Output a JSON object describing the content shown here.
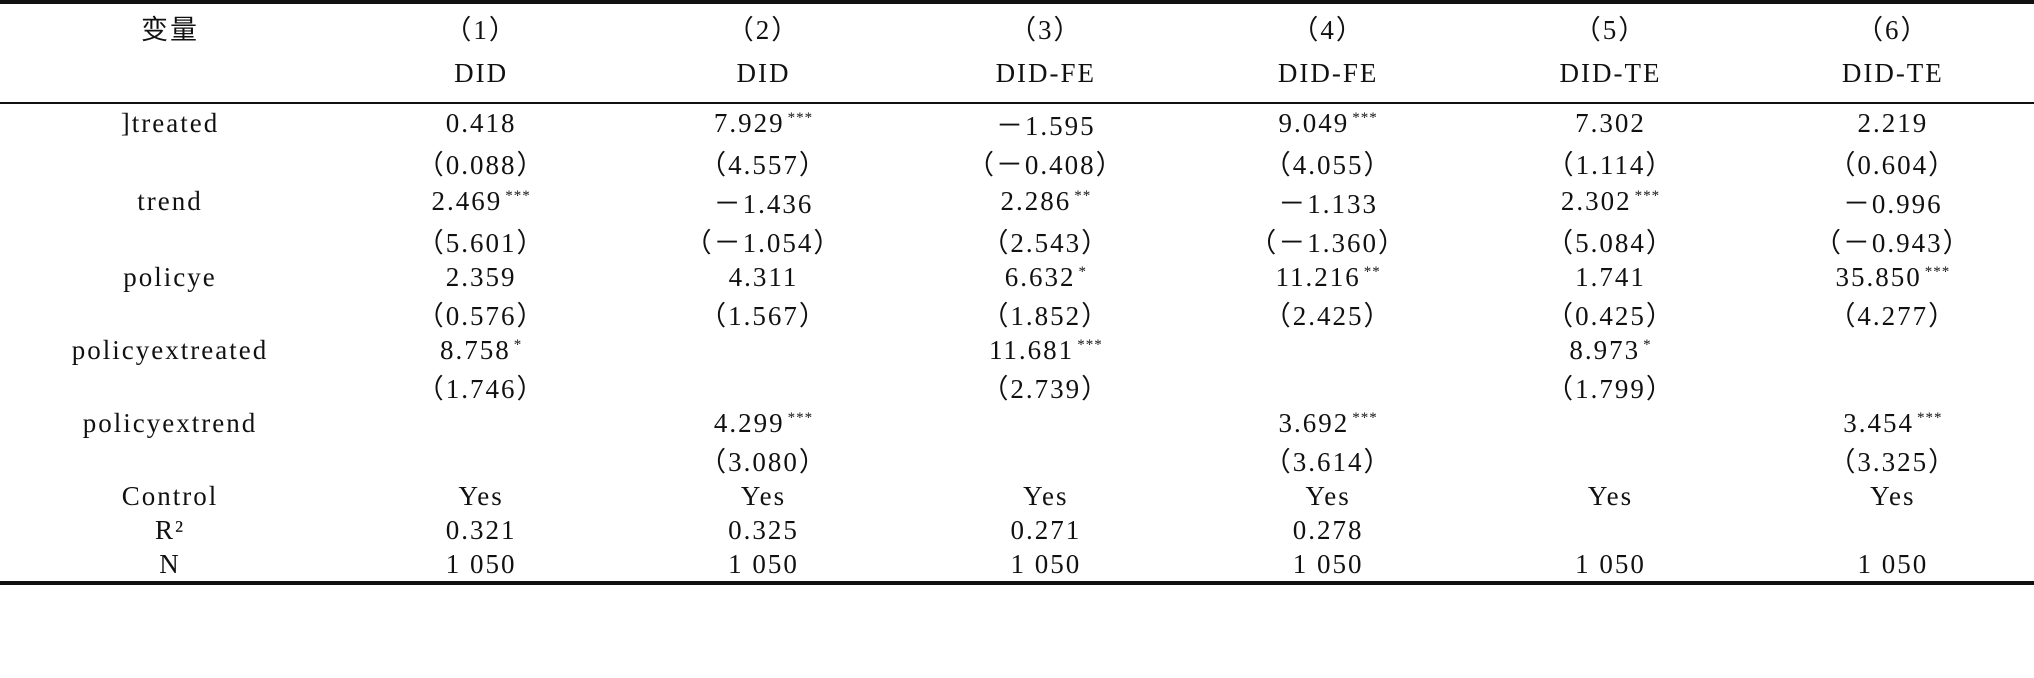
{
  "header": {
    "rows": [
      [
        "变量",
        "（1）",
        "（2）",
        "（3）",
        "（4）",
        "（5）",
        "（6）"
      ],
      [
        null,
        "DID",
        "DID",
        "DID-FE",
        "DID-FE",
        "DID-TE",
        "DID-TE"
      ]
    ]
  },
  "table": {
    "rows": [
      [
        "]treated",
        "0.418",
        {
          "text": "7.929",
          "stars": "***"
        },
        "－1.595",
        {
          "text": "9.049",
          "stars": "***"
        },
        "7.302",
        "2.219"
      ],
      [
        null,
        "（0.088）",
        "（4.557）",
        "（－0.408）",
        "（4.055）",
        "（1.114）",
        "（0.604）"
      ],
      [
        "trend",
        {
          "text": "2.469",
          "stars": "***"
        },
        "－1.436",
        {
          "text": "2.286",
          "stars": "**"
        },
        "－1.133",
        {
          "text": "2.302",
          "stars": "***"
        },
        "－0.996"
      ],
      [
        null,
        "（5.601）",
        "（－1.054）",
        "（2.543）",
        "（－1.360）",
        "（5.084）",
        "（－0.943）"
      ],
      [
        "policye",
        "2.359",
        "4.311",
        {
          "text": "6.632",
          "stars": "*"
        },
        {
          "text": "11.216",
          "stars": "**"
        },
        "1.741",
        {
          "text": "35.850",
          "stars": "***"
        }
      ],
      [
        null,
        "（0.576）",
        "（1.567）",
        "（1.852）",
        "（2.425）",
        "（0.425）",
        "（4.277）"
      ],
      [
        "policyextreated",
        {
          "text": "8.758",
          "stars": "*"
        },
        null,
        {
          "text": "11.681",
          "stars": "***"
        },
        null,
        {
          "text": "8.973",
          "stars": "*"
        },
        null
      ],
      [
        null,
        "（1.746）",
        null,
        "（2.739）",
        null,
        "（1.799）",
        null
      ],
      [
        "policyextrend",
        null,
        {
          "text": "4.299",
          "stars": "***"
        },
        null,
        {
          "text": "3.692",
          "stars": "***"
        },
        null,
        {
          "text": "3.454",
          "stars": "***"
        }
      ],
      [
        null,
        null,
        "（3.080）",
        null,
        "（3.614）",
        null,
        "（3.325）"
      ],
      [
        "Control",
        "Yes",
        "Yes",
        "Yes",
        "Yes",
        "Yes",
        "Yes"
      ],
      [
        "R²",
        "0.321",
        "0.325",
        "0.271",
        "0.278",
        null,
        null
      ],
      [
        "N",
        "1 050",
        "1 050",
        "1 050",
        "1 050",
        "1 050",
        "1 050"
      ]
    ]
  }
}
